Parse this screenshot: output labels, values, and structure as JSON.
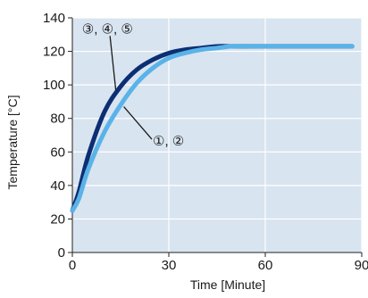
{
  "chart_data": {
    "type": "line",
    "xlabel": "Time [Minute]",
    "ylabel": "Temperature [°C]",
    "xlim": [
      0,
      90
    ],
    "ylim": [
      0,
      140
    ],
    "xticks": [
      0,
      30,
      60,
      90
    ],
    "yticks": [
      0,
      20,
      40,
      60,
      80,
      100,
      120,
      140
    ],
    "grid": true,
    "background_color": "#d8e4f0",
    "series": [
      {
        "name": "③, ④, ⑤",
        "color": "#0c2f73",
        "x": [
          0,
          2,
          5,
          10,
          15,
          20,
          25,
          30,
          35,
          40,
          45,
          50,
          60,
          70,
          80,
          87
        ],
        "y": [
          25,
          36,
          58,
          84,
          99,
          109,
          115,
          119,
          121,
          122,
          123,
          123,
          123,
          123,
          123,
          123
        ]
      },
      {
        "name": "①, ②",
        "color": "#5ab3e8",
        "x": [
          0,
          2,
          5,
          10,
          15,
          20,
          25,
          30,
          35,
          40,
          45,
          50,
          60,
          70,
          80,
          87
        ],
        "y": [
          25,
          32,
          50,
          72,
          88,
          101,
          110,
          116,
          119,
          121,
          122,
          123,
          123,
          123,
          123,
          123
        ]
      }
    ],
    "annotations": [
      {
        "text": "③, ④, ⑤",
        "x": 3,
        "y": 134,
        "target_x": 13.5,
        "target_y": 97
      },
      {
        "text": "①, ②",
        "x": 25,
        "y": 67,
        "target_x": 16,
        "target_y": 87
      }
    ]
  }
}
